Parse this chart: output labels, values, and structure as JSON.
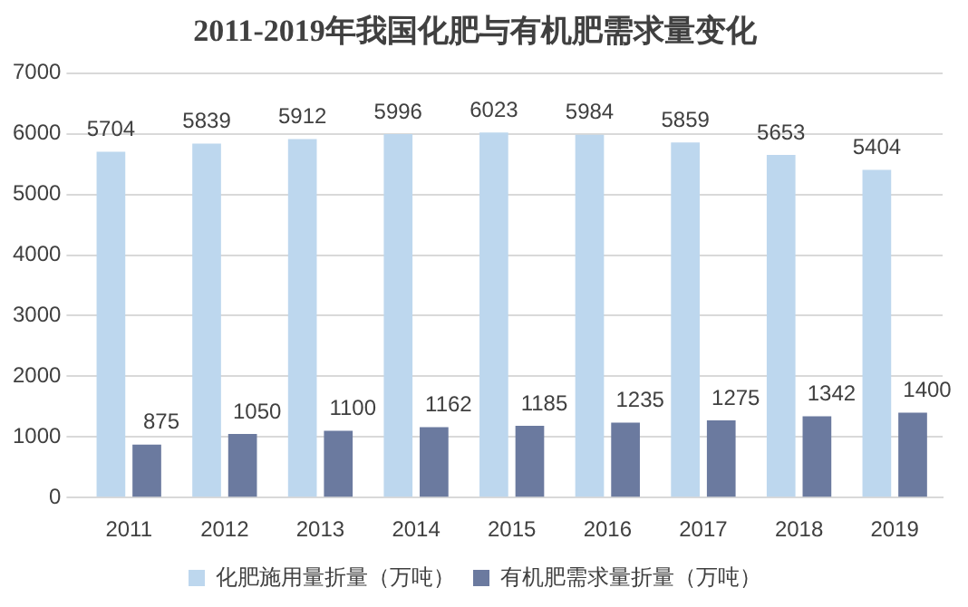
{
  "chart_data": {
    "type": "bar",
    "title": "2011-2019年我国化肥与有机肥需求量变化",
    "categories": [
      "2011",
      "2012",
      "2013",
      "2014",
      "2015",
      "2016",
      "2017",
      "2018",
      "2019"
    ],
    "series": [
      {
        "name": "化肥施用量折量（万吨）",
        "color": "#bdd7ee",
        "values": [
          5704,
          5839,
          5912,
          5996,
          6023,
          5984,
          5859,
          5653,
          5404
        ]
      },
      {
        "name": "有机肥需求量折量（万吨）",
        "color": "#6b7a9f",
        "values": [
          875,
          1050,
          1100,
          1162,
          1185,
          1235,
          1275,
          1342,
          1400
        ]
      }
    ],
    "ylim": [
      0,
      7000
    ],
    "yticks": [
      0,
      1000,
      2000,
      3000,
      4000,
      5000,
      6000,
      7000
    ],
    "grid": "y",
    "legend": "bottom",
    "data_labels": true
  }
}
